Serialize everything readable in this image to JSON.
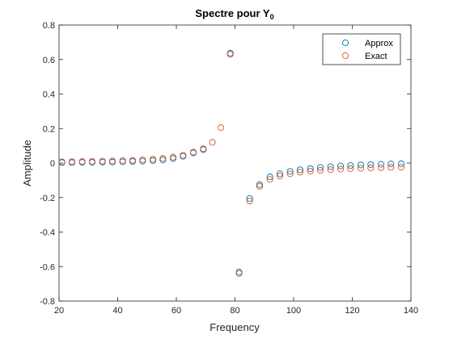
{
  "chart_data": {
    "type": "scatter",
    "title": "Spectre pour Y",
    "title_subscript": "0",
    "xlabel": "Frequency",
    "ylabel": "Amplitude",
    "xlim": [
      20,
      140
    ],
    "ylim": [
      -0.8,
      0.8
    ],
    "xticks": [
      20,
      40,
      60,
      80,
      100,
      120,
      140
    ],
    "yticks": [
      -0.8,
      -0.6,
      -0.4,
      -0.2,
      0,
      0.2,
      0.4,
      0.6,
      0.8
    ],
    "grid": false,
    "legend_position": "top-right",
    "marker": "open-circle",
    "series": [
      {
        "name": "Approx",
        "color": "#0072BD",
        "points": [
          [
            21.0,
            0.003
          ],
          [
            24.4,
            0.003
          ],
          [
            27.9,
            0.004
          ],
          [
            31.3,
            0.004
          ],
          [
            34.8,
            0.005
          ],
          [
            38.2,
            0.006
          ],
          [
            41.7,
            0.007
          ],
          [
            45.1,
            0.009
          ],
          [
            48.5,
            0.011
          ],
          [
            52.0,
            0.014
          ],
          [
            55.4,
            0.018
          ],
          [
            58.9,
            0.026
          ],
          [
            62.3,
            0.039
          ],
          [
            65.8,
            0.059
          ],
          [
            69.2,
            0.078
          ],
          [
            78.4,
            0.637
          ],
          [
            81.4,
            -0.632
          ],
          [
            85.0,
            -0.205
          ],
          [
            88.4,
            -0.125
          ],
          [
            91.9,
            -0.08
          ],
          [
            95.3,
            -0.062
          ],
          [
            98.8,
            -0.048
          ],
          [
            102.2,
            -0.039
          ],
          [
            105.7,
            -0.032
          ],
          [
            109.1,
            -0.026
          ],
          [
            112.6,
            -0.021
          ],
          [
            116.0,
            -0.017
          ],
          [
            119.4,
            -0.014
          ],
          [
            122.9,
            -0.011
          ],
          [
            126.3,
            -0.009
          ],
          [
            129.8,
            -0.007
          ],
          [
            133.2,
            -0.005
          ],
          [
            136.7,
            -0.004
          ],
          [
            140.1,
            -0.003
          ]
        ]
      },
      {
        "name": "Exact",
        "color": "#D95319",
        "points": [
          [
            21.0,
            0.007
          ],
          [
            24.4,
            0.008
          ],
          [
            27.9,
            0.009
          ],
          [
            31.3,
            0.01
          ],
          [
            34.8,
            0.011
          ],
          [
            38.2,
            0.012
          ],
          [
            41.7,
            0.014
          ],
          [
            45.1,
            0.016
          ],
          [
            48.5,
            0.019
          ],
          [
            52.0,
            0.022
          ],
          [
            55.4,
            0.027
          ],
          [
            58.9,
            0.034
          ],
          [
            62.3,
            0.045
          ],
          [
            65.8,
            0.063
          ],
          [
            69.2,
            0.083
          ],
          [
            72.3,
            0.12
          ],
          [
            75.2,
            0.205
          ],
          [
            78.4,
            0.63
          ],
          [
            81.4,
            -0.64
          ],
          [
            85.0,
            -0.22
          ],
          [
            88.4,
            -0.135
          ],
          [
            91.9,
            -0.095
          ],
          [
            95.3,
            -0.075
          ],
          [
            98.8,
            -0.062
          ],
          [
            102.2,
            -0.053
          ],
          [
            105.7,
            -0.047
          ],
          [
            109.1,
            -0.042
          ],
          [
            112.6,
            -0.038
          ],
          [
            116.0,
            -0.035
          ],
          [
            119.4,
            -0.032
          ],
          [
            122.9,
            -0.03
          ],
          [
            126.3,
            -0.028
          ],
          [
            129.8,
            -0.027
          ],
          [
            133.2,
            -0.025
          ],
          [
            136.7,
            -0.024
          ],
          [
            140.1,
            -0.023
          ]
        ]
      }
    ]
  }
}
